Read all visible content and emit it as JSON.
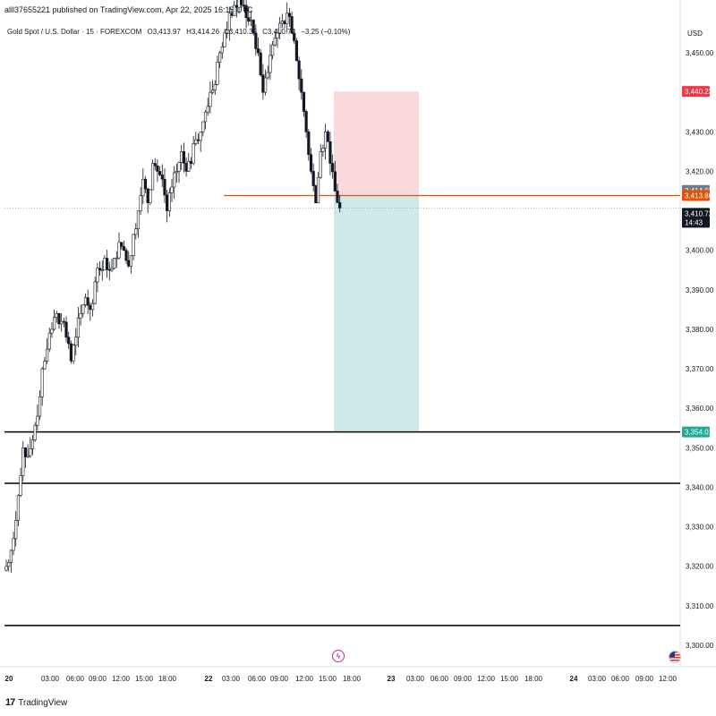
{
  "header": {
    "published": "alll37655221 published on TradingView.com, Apr 22, 2025 16:15 UTC",
    "symbol": "Gold Spot / U.S. Dollar · 15 · FOREXCOM",
    "open": "O3,413.97",
    "high": "H3,414.26",
    "low": "L3,410.39",
    "close": "C3,410.72",
    "change": "−3.25 (−0.10%)"
  },
  "currency": "USD",
  "footer": {
    "brand": "TradingView",
    "brand_mark": "17"
  },
  "event_icon": "lightning-icon",
  "colors": {
    "up": "#131722",
    "down": "#131722",
    "entry_line": "#e65100",
    "stop_zone": "#f8cfcf",
    "target_zone": "#b2dfdb",
    "price_tag": "#131722",
    "stop_tag": "#f23645",
    "target_tag": "#22ab94",
    "entry_tag": "#e65100",
    "high_tag": "#787b86"
  },
  "chart_data": {
    "type": "candlestick",
    "ylim": [
      3295,
      3458
    ],
    "y_ticks": [
      "3,450.00",
      "3,430.00",
      "3,420.00",
      "3,400.00",
      "3,390.00",
      "3,380.00",
      "3,370.00",
      "3,360.00",
      "3,350.00",
      "3,340.00",
      "3,330.00",
      "3,320.00",
      "3,310.00",
      "3,300.00"
    ],
    "x_ticks": [
      "20",
      "03:00",
      "06:00",
      "09:00",
      "12:00",
      "15:00",
      "18:00",
      "22",
      "03:00",
      "06:00",
      "09:00",
      "12:00",
      "15:00",
      "18:00",
      "23",
      "03:00",
      "06:00",
      "09:00",
      "12:00",
      "15:00",
      "18:00",
      "24",
      "03:00",
      "06:00",
      "09:00",
      "12:00"
    ],
    "bold_ticks": [
      "20",
      "22",
      "23",
      "24"
    ],
    "price_tags": [
      {
        "label": "3,440.23",
        "value": 3440.23,
        "role": "stop"
      },
      {
        "label": "3,414.02",
        "value": 3414.02,
        "role": "high"
      },
      {
        "label": "3,413.86",
        "value": 3413.86,
        "role": "entry"
      },
      {
        "label": "3,410.72",
        "value": 3410.72,
        "role": "last",
        "sub": "14:43"
      },
      {
        "label": "3,354.01",
        "value": 3354.01,
        "role": "target"
      }
    ],
    "horizontal_lines": [
      3354.01,
      3341.0,
      3305.0
    ],
    "entry_line": 3413.86,
    "position": {
      "type": "short",
      "entry": 3413.86,
      "stop": 3440.23,
      "target": 3354.01,
      "start_bar": "22 15:00",
      "end_bar": "23 03:00"
    },
    "close_path": [
      3321,
      3327,
      3338,
      3350,
      3348,
      3352,
      3358,
      3370,
      3375,
      3380,
      3384,
      3382,
      3378,
      3372,
      3378,
      3384,
      3388,
      3385,
      3392,
      3395,
      3398,
      3395,
      3398,
      3402,
      3400,
      3396,
      3404,
      3410,
      3418,
      3412,
      3422,
      3420,
      3418,
      3410,
      3416,
      3420,
      3425,
      3420,
      3422,
      3428,
      3430,
      3435,
      3440,
      3442,
      3450,
      3455,
      3460,
      3462,
      3464,
      3462,
      3458,
      3455,
      3450,
      3440,
      3445,
      3452,
      3455,
      3458,
      3460,
      3455,
      3448,
      3440,
      3430,
      3420,
      3412,
      3425,
      3430,
      3422,
      3415,
      3410.72
    ]
  }
}
